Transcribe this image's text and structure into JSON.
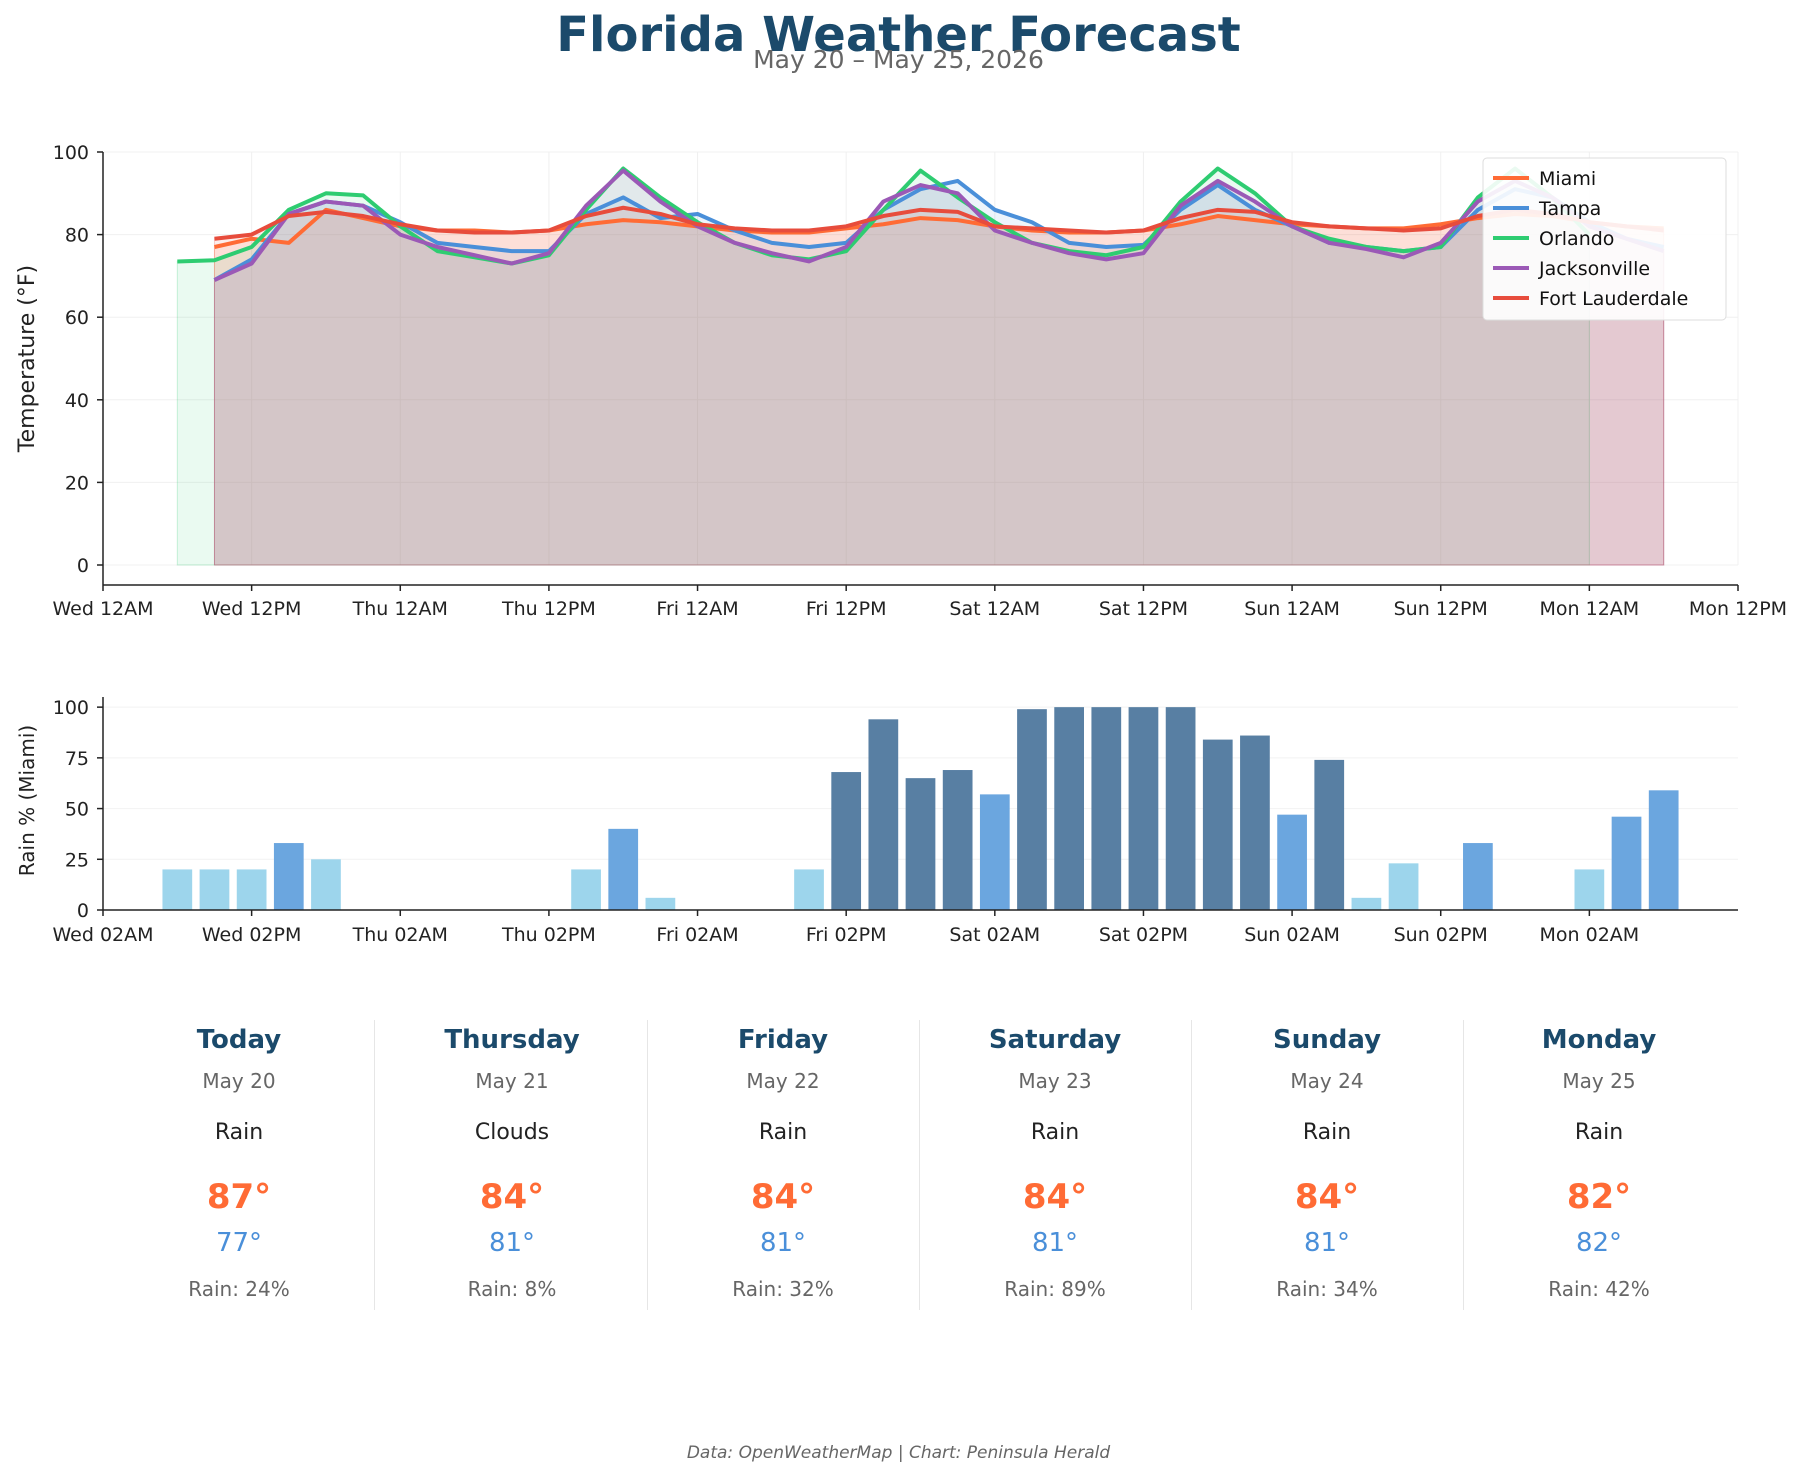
{
  "header": {
    "title": "Florida Weather Forecast",
    "subtitle": "May 20 – May 25, 2026"
  },
  "footer": {
    "credit": "Data: OpenWeatherMap | Chart: Peninsula Herald"
  },
  "colors": {
    "title": "#1b4a6b",
    "high": "#ff6b35",
    "low": "#4a8fd9",
    "rain_light": "#9dd5ec",
    "rain_medium": "#6ba6df",
    "rain_heavy": "#587fa3"
  },
  "chart_data": [
    {
      "type": "line",
      "ylabel": "Temperature (°F)",
      "ylim": [
        0,
        100
      ],
      "yticks": [
        0,
        20,
        40,
        60,
        80,
        100
      ],
      "xlim_hours": [
        0,
        132
      ],
      "xtick_labels": [
        "Wed 12AM",
        "Wed 12PM",
        "Thu 12AM",
        "Thu 12PM",
        "Fri 12AM",
        "Fri 12PM",
        "Sat 12AM",
        "Sat 12PM",
        "Sun 12AM",
        "Sun 12PM",
        "Mon 12AM",
        "Mon 12PM"
      ],
      "grid": true,
      "legend_position": "top-right",
      "filled_area": true,
      "series": [
        {
          "name": "Miami",
          "color": "#ff6b35",
          "x": [
            9,
            12,
            15,
            18,
            21,
            24,
            27,
            30,
            33,
            36,
            39,
            42,
            45,
            48,
            51,
            54,
            57,
            60,
            63,
            66,
            69,
            72,
            75,
            78,
            81,
            84,
            87,
            90,
            93,
            96,
            99,
            102,
            105,
            108,
            111,
            114,
            117,
            120,
            123,
            126
          ],
          "y": [
            77,
            79,
            78,
            86,
            84,
            82,
            81,
            81,
            80.5,
            81,
            82.5,
            83.5,
            83,
            82,
            81,
            80.5,
            80.5,
            81.5,
            82.5,
            84,
            83.5,
            82,
            81,
            80.5,
            80.5,
            81,
            82.5,
            84.5,
            83.5,
            82.5,
            82,
            81.5,
            81.5,
            82.5,
            84,
            85,
            84.5,
            83,
            82,
            81.5
          ]
        },
        {
          "name": "Tampa",
          "color": "#4a8fd9",
          "x": [
            9,
            12,
            15,
            18,
            21,
            24,
            27,
            30,
            33,
            36,
            39,
            42,
            45,
            48,
            51,
            54,
            57,
            60,
            63,
            66,
            69,
            72,
            75,
            78,
            81,
            84,
            87,
            90,
            93,
            96,
            99,
            102,
            105,
            108,
            111,
            114,
            117,
            120,
            123,
            126
          ],
          "y": [
            69,
            74,
            85,
            88,
            87,
            83,
            78,
            77,
            76,
            76,
            85,
            89,
            84,
            85,
            81,
            78,
            77,
            78,
            86,
            91,
            93,
            86,
            83,
            78,
            77,
            77.5,
            86,
            92,
            86,
            82,
            78,
            77,
            76,
            77,
            86,
            91,
            89,
            83,
            79,
            77
          ]
        },
        {
          "name": "Orlando",
          "color": "#2ecc71",
          "x": [
            6,
            9,
            12,
            15,
            18,
            21,
            24,
            27,
            30,
            33,
            36,
            39,
            42,
            45,
            48,
            51,
            54,
            57,
            60,
            63,
            66,
            69,
            72,
            75,
            78,
            81,
            84,
            87,
            90,
            93,
            96,
            99,
            102,
            105,
            108,
            111,
            114,
            117,
            120
          ],
          "y": [
            73.5,
            73.8,
            77,
            86,
            90,
            89.5,
            82,
            76,
            74.5,
            73,
            75,
            86,
            96,
            89,
            83,
            78,
            75,
            74,
            76,
            86,
            95.5,
            89,
            83,
            78,
            76,
            75,
            77,
            88,
            96,
            90,
            82,
            79,
            77,
            76,
            77,
            89,
            96,
            89,
            80
          ]
        },
        {
          "name": "Jacksonville",
          "color": "#9b59b6",
          "x": [
            9,
            12,
            15,
            18,
            21,
            24,
            27,
            30,
            33,
            36,
            39,
            42,
            45,
            48,
            51,
            54,
            57,
            60,
            63,
            66,
            69,
            72,
            75,
            78,
            81,
            84,
            87,
            90,
            93,
            96,
            99,
            102,
            105,
            108,
            111,
            114,
            117,
            120,
            123,
            126
          ],
          "y": [
            69,
            73,
            85,
            88,
            87,
            80,
            77,
            75,
            73,
            75.5,
            87,
            95.5,
            88,
            82,
            78,
            75.5,
            73.5,
            77,
            88,
            92,
            90,
            81,
            78,
            75.5,
            74,
            75.5,
            87,
            93,
            88,
            82,
            78,
            76.5,
            74.5,
            78,
            88,
            93,
            89,
            82,
            79,
            76
          ]
        },
        {
          "name": "Fort Lauderdale",
          "color": "#e74c3c",
          "x": [
            9,
            12,
            15,
            18,
            21,
            24,
            27,
            30,
            33,
            36,
            39,
            42,
            45,
            48,
            51,
            54,
            57,
            60,
            63,
            66,
            69,
            72,
            75,
            78,
            81,
            84,
            87,
            90,
            93,
            96,
            99,
            102,
            105,
            108,
            111,
            114,
            117,
            120,
            123,
            126
          ],
          "y": [
            79,
            80,
            84.5,
            85.5,
            84.5,
            82.5,
            81,
            80.5,
            80.5,
            81,
            84.5,
            86.5,
            85,
            82.5,
            81.5,
            81,
            81,
            82,
            84.5,
            86,
            85.5,
            82,
            81.5,
            81,
            80.5,
            81,
            84,
            86,
            85.5,
            83,
            82,
            81.5,
            81,
            81.5,
            84.5,
            86,
            85,
            83,
            82,
            81
          ]
        }
      ]
    },
    {
      "type": "bar",
      "ylabel": "Rain % (Miami)",
      "ylim": [
        0,
        105
      ],
      "yticks": [
        0,
        25,
        50,
        75,
        100
      ],
      "xlim_hours": [
        2,
        134
      ],
      "xtick_labels": [
        "Wed 02AM",
        "Wed 02PM",
        "Thu 02AM",
        "Thu 02PM",
        "Fri 02AM",
        "Fri 02PM",
        "Sat 02AM",
        "Sat 02PM",
        "Sun 02AM",
        "Sun 02PM",
        "Mon 02AM"
      ],
      "x_hours": [
        8,
        11,
        14,
        17,
        20,
        23,
        26,
        29,
        32,
        35,
        38,
        41,
        44,
        47,
        50,
        53,
        56,
        59,
        62,
        65,
        68,
        71,
        74,
        77,
        80,
        83,
        86,
        89,
        92,
        95,
        98,
        101,
        104,
        107,
        110,
        113,
        116,
        119,
        122,
        125,
        128
      ],
      "values": [
        20,
        20,
        20,
        33,
        25,
        0,
        0,
        0,
        0,
        0,
        0,
        20,
        40,
        6,
        0,
        0,
        0,
        20,
        68,
        94,
        65,
        69,
        57,
        99,
        100,
        100,
        100,
        100,
        84,
        86,
        47,
        74,
        6,
        23,
        0,
        33,
        0,
        0,
        20,
        46,
        59
      ]
    }
  ],
  "forecast": [
    {
      "day": "Today",
      "date": "May 20",
      "condition": "Rain",
      "high": "87°",
      "low": "77°",
      "rain": "Rain: 24%"
    },
    {
      "day": "Thursday",
      "date": "May 21",
      "condition": "Clouds",
      "high": "84°",
      "low": "81°",
      "rain": "Rain: 8%"
    },
    {
      "day": "Friday",
      "date": "May 22",
      "condition": "Rain",
      "high": "84°",
      "low": "81°",
      "rain": "Rain: 32%"
    },
    {
      "day": "Saturday",
      "date": "May 23",
      "condition": "Rain",
      "high": "84°",
      "low": "81°",
      "rain": "Rain: 89%"
    },
    {
      "day": "Sunday",
      "date": "May 24",
      "condition": "Rain",
      "high": "84°",
      "low": "81°",
      "rain": "Rain: 34%"
    },
    {
      "day": "Monday",
      "date": "May 25",
      "condition": "Rain",
      "high": "82°",
      "low": "82°",
      "rain": "Rain: 42%"
    }
  ]
}
